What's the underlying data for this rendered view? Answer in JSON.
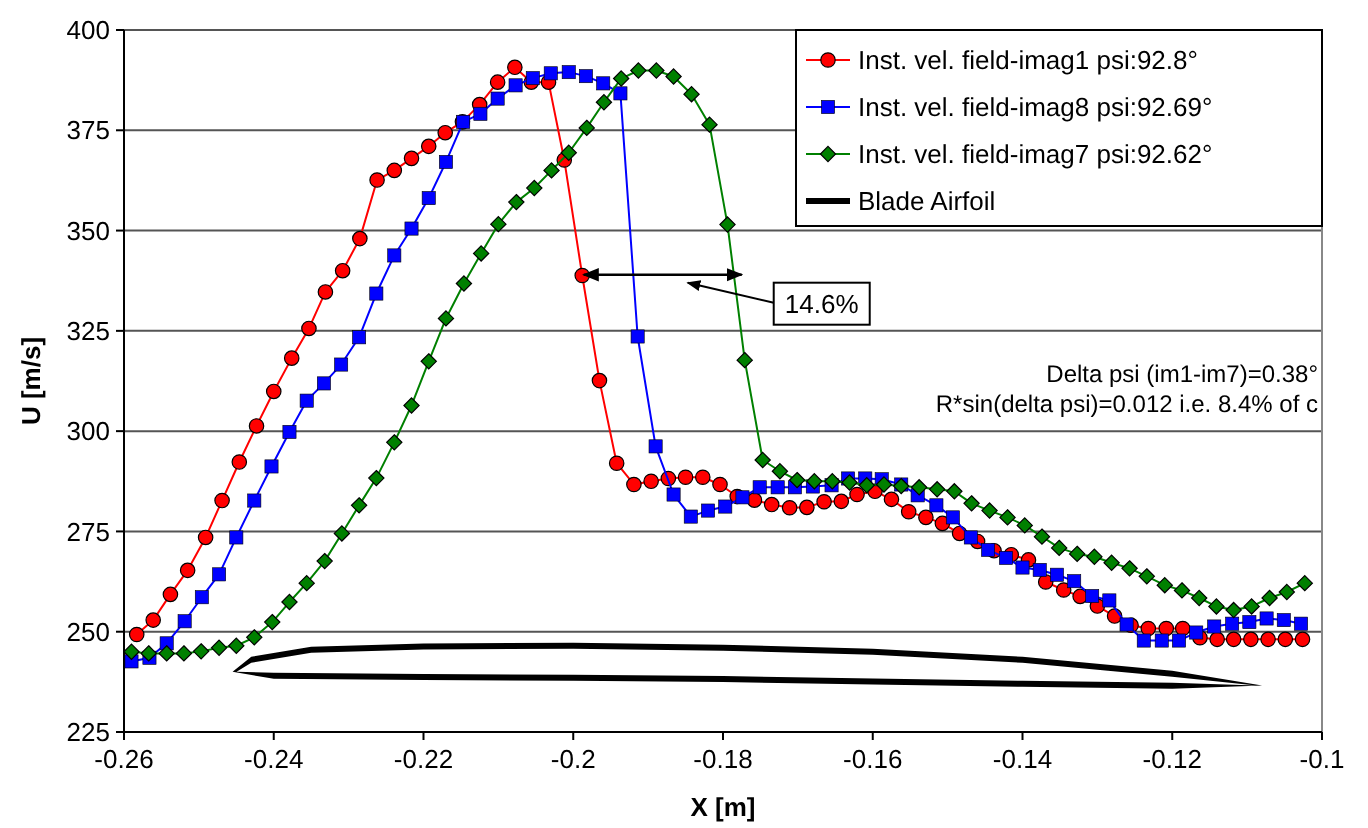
{
  "chart_data": {
    "type": "line",
    "xlabel": "X [m]",
    "ylabel": "U [m/s]",
    "xlim": [
      -0.26,
      -0.1
    ],
    "xticks": [
      -0.26,
      -0.24,
      -0.22,
      -0.2,
      -0.18,
      -0.16,
      -0.14,
      -0.12,
      -0.1
    ],
    "ylim": [
      225,
      400
    ],
    "yticks": [
      225,
      250,
      275,
      300,
      325,
      350,
      375,
      400
    ],
    "grid": "y",
    "legend": "top right",
    "annotations": [
      {
        "text": "14.6%",
        "x": -0.1775,
        "y": 339
      },
      "Delta psi (im1-im7)=0.38°",
      "R*sin(delta psi)=0.012 i.e. 8.4% of c"
    ],
    "series": [
      {
        "name": "Inst. vel. field-imag1 psi:92.8°",
        "color": "#ff0000",
        "marker": "circle",
        "x": [
          -0.2583,
          -0.2561,
          -0.2538,
          -0.2515,
          -0.2491,
          -0.2469,
          -0.2446,
          -0.2423,
          -0.24,
          -0.2376,
          -0.2353,
          -0.2331,
          -0.2308,
          -0.2285,
          -0.2262,
          -0.2239,
          -0.2216,
          -0.2193,
          -0.2171,
          -0.2148,
          -0.2125,
          -0.2101,
          -0.2078,
          -0.2056,
          -0.2033,
          -0.2012,
          -0.1988,
          -0.1965,
          -0.1942,
          -0.1919,
          -0.1896,
          -0.1873,
          -0.185,
          -0.1827,
          -0.1804,
          -0.1781,
          -0.1758,
          -0.1735,
          -0.1711,
          -0.1688,
          -0.1665,
          -0.1642,
          -0.1621,
          -0.1597,
          -0.1575,
          -0.1552,
          -0.1529,
          -0.1507,
          -0.1484,
          -0.146,
          -0.1438,
          -0.1415,
          -0.1392,
          -0.1369,
          -0.1345,
          -0.1323,
          -0.13,
          -0.1277,
          -0.1255,
          -0.1232,
          -0.1208,
          -0.1186,
          -0.1163,
          -0.114,
          -0.1118,
          -0.1095,
          -0.1072,
          -0.1049,
          -0.1026
        ],
        "values": [
          249.3,
          252.9,
          259.3,
          265.3,
          273.5,
          282.7,
          292.3,
          301.3,
          309.9,
          318.2,
          325.6,
          334.7,
          340,
          348,
          362.6,
          365,
          368,
          371,
          374.4,
          377.1,
          381.4,
          387,
          390.7,
          387,
          387,
          367.6,
          338.8,
          312.6,
          292,
          286.7,
          287.5,
          288.2,
          288.5,
          288.5,
          286.7,
          283.7,
          282.8,
          281.7,
          280.9,
          281,
          282.4,
          282.5,
          284.2,
          285,
          283,
          279.9,
          278.5,
          277,
          274.5,
          272.5,
          270.2,
          269.2,
          267.9,
          262.4,
          260.4,
          258.8,
          256.4,
          253.9,
          251.6,
          250.8,
          250.8,
          250.8,
          248.5,
          248.1,
          248.1,
          248.1,
          248.1,
          248.1,
          248.1
        ]
      },
      {
        "name": "Inst. vel. field-imag8 psi:92.69°",
        "color": "#0000ff",
        "marker": "square",
        "x": [
          -0.259,
          -0.2566,
          -0.2543,
          -0.2519,
          -0.2496,
          -0.2473,
          -0.245,
          -0.2426,
          -0.2403,
          -0.2379,
          -0.2356,
          -0.2333,
          -0.231,
          -0.2286,
          -0.2263,
          -0.2239,
          -0.2216,
          -0.2193,
          -0.217,
          -0.2147,
          -0.2124,
          -0.2101,
          -0.2077,
          -0.2054,
          -0.203,
          -0.2006,
          -0.1983,
          -0.196,
          -0.1937,
          -0.1914,
          -0.189,
          -0.1866,
          -0.1843,
          -0.182,
          -0.1797,
          -0.1774,
          -0.1751,
          -0.1727,
          -0.1704,
          -0.168,
          -0.1655,
          -0.1633,
          -0.161,
          -0.1588,
          -0.1562,
          -0.154,
          -0.1515,
          -0.1493,
          -0.1469,
          -0.1446,
          -0.1422,
          -0.14,
          -0.1377,
          -0.1354,
          -0.1331,
          -0.1307,
          -0.1284,
          -0.1261,
          -0.1238,
          -0.1214,
          -0.1191,
          -0.1168,
          -0.1144,
          -0.112,
          -0.1097,
          -0.1074,
          -0.1051,
          -0.1028
        ],
        "values": [
          242.6,
          243.5,
          247.1,
          252.6,
          258.6,
          264.3,
          273.5,
          282.7,
          291.2,
          299.8,
          307.6,
          311.9,
          316.6,
          323.4,
          334.3,
          343.8,
          350.5,
          358.1,
          367.1,
          377.1,
          379.1,
          382.9,
          386.2,
          388,
          389.2,
          389.5,
          388.5,
          386.7,
          384.2,
          323.6,
          296.2,
          284.2,
          278.7,
          280.2,
          281.2,
          283.5,
          286,
          286,
          286,
          286.2,
          286.5,
          288.2,
          288.2,
          288,
          286.7,
          284,
          281.5,
          278.5,
          273.5,
          270.4,
          268.4,
          266,
          265.4,
          264.2,
          262.6,
          258.9,
          257.8,
          251.8,
          247.8,
          247.8,
          247.8,
          249.8,
          251.3,
          252,
          252.4,
          253.3,
          252.9,
          252
        ]
      },
      {
        "name": "Inst. vel. field-imag7 psi:92.62°",
        "color": "#008000",
        "marker": "diamond",
        "x": [
          -0.259,
          -0.2567,
          -0.2543,
          -0.252,
          -0.2497,
          -0.2473,
          -0.245,
          -0.2426,
          -0.2402,
          -0.2379,
          -0.2356,
          -0.2332,
          -0.2309,
          -0.2286,
          -0.2263,
          -0.2239,
          -0.2216,
          -0.2193,
          -0.217,
          -0.2146,
          -0.2123,
          -0.21,
          -0.2076,
          -0.2052,
          -0.2029,
          -0.2006,
          -0.1982,
          -0.1959,
          -0.1936,
          -0.1913,
          -0.1889,
          -0.1866,
          -0.1842,
          -0.1818,
          -0.1794,
          -0.1771,
          -0.1747,
          -0.1724,
          -0.1701,
          -0.1678,
          -0.1654,
          -0.1631,
          -0.1608,
          -0.1585,
          -0.1562,
          -0.1538,
          -0.1514,
          -0.1491,
          -0.1468,
          -0.1444,
          -0.142,
          -0.1397,
          -0.1374,
          -0.1351,
          -0.1327,
          -0.1304,
          -0.1281,
          -0.1257,
          -0.1234,
          -0.121,
          -0.1187,
          -0.1164,
          -0.1141,
          -0.1118,
          -0.1094,
          -0.107,
          -0.1047,
          -0.1023
        ],
        "values": [
          245,
          244.6,
          244.6,
          244.6,
          245.1,
          246,
          246.5,
          248.6,
          252.4,
          257.4,
          262.1,
          267.6,
          274.5,
          281.5,
          288.3,
          297.2,
          306.4,
          317.4,
          328.1,
          336.8,
          344.3,
          351.6,
          357.1,
          360.6,
          365,
          369.4,
          375.6,
          382,
          387.9,
          389.9,
          389.9,
          388.4,
          384,
          376.4,
          351.5,
          317.7,
          292.8,
          290,
          287.8,
          287.5,
          287.5,
          287.2,
          286.5,
          286.7,
          286.3,
          286,
          285.5,
          285,
          282,
          280.2,
          278.5,
          276.5,
          273.7,
          270.9,
          269.4,
          268.7,
          267.2,
          265.8,
          263.8,
          261.6,
          260.3,
          258.4,
          256.3,
          255.4,
          256.3,
          258.4,
          259.9,
          262.1
        ]
      },
      {
        "name": "Blade Airfoil",
        "color": "#000000",
        "marker": "none"
      }
    ]
  }
}
